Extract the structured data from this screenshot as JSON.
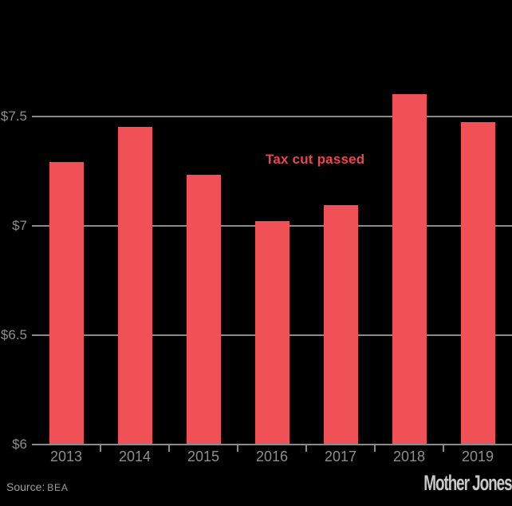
{
  "chart_data": {
    "type": "bar",
    "title": "",
    "xlabel": "",
    "ylabel": "",
    "categories": [
      "2013",
      "2014",
      "2015",
      "2016",
      "2017",
      "2018",
      "2019"
    ],
    "values": [
      7.29,
      7.45,
      7.23,
      7.02,
      7.09,
      7.6,
      7.47
    ],
    "ylim": [
      6.0,
      7.65
    ],
    "yticks": [
      {
        "label": "$7.5",
        "value": 7.5
      },
      {
        "label": "$7",
        "value": 7.0
      },
      {
        "label": "$6.5",
        "value": 6.5
      },
      {
        "label": "$6",
        "value": 6.0
      }
    ],
    "grid": "horizontal-only",
    "legend": "none",
    "annotation": {
      "text": "Tax cut passed"
    },
    "colors": {
      "bar": "#f05157",
      "annotation": "#ef434d",
      "gridline": "#8a8a8a",
      "tick_label": "#8e8e8e",
      "background": "#000000"
    }
  },
  "footer": {
    "source_label": "Source:",
    "source_value": "BEA",
    "brand": "Mother Jones"
  }
}
